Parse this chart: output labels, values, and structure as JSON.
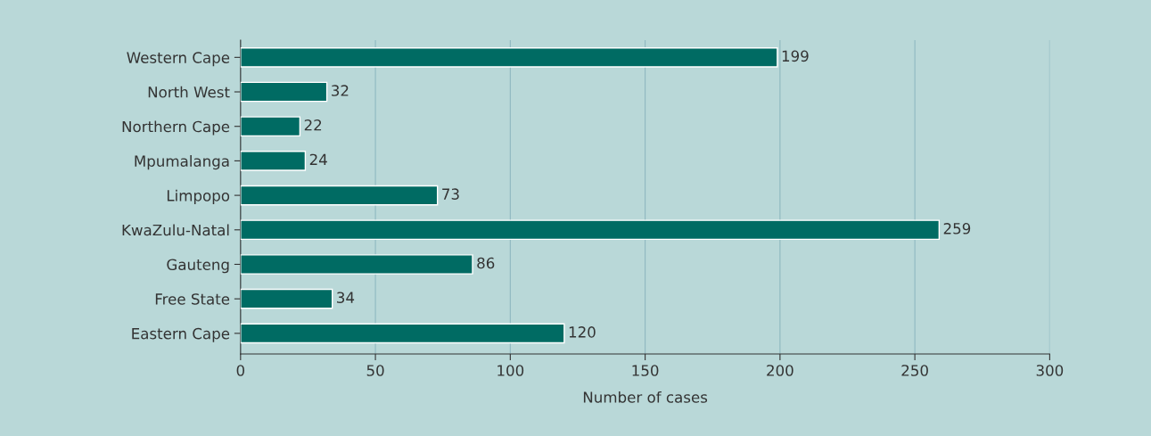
{
  "chart_data": {
    "type": "bar",
    "orientation": "horizontal",
    "xlabel": "Number of cases",
    "categories": [
      "Western Cape",
      "North West",
      "Northern Cape",
      "Mpumalanga",
      "Limpopo",
      "KwaZulu-Natal",
      "Gauteng",
      "Free State",
      "Eastern Cape"
    ],
    "values": [
      199,
      32,
      22,
      24,
      73,
      259,
      86,
      34,
      120
    ],
    "color": "#006b63",
    "xlim": [
      0,
      300
    ],
    "xticks": [
      0,
      50,
      100,
      150,
      200,
      250,
      300
    ],
    "grid": "x",
    "data_labels": true
  }
}
